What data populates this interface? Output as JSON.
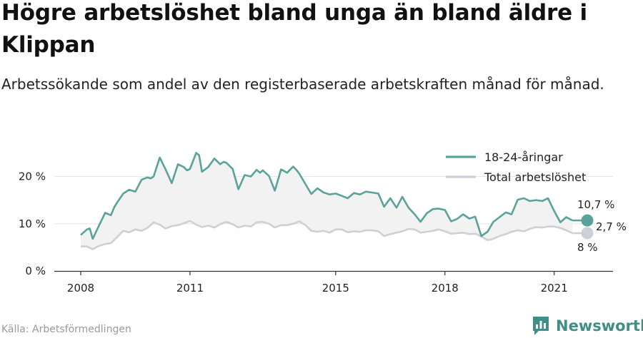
{
  "title": "Högre arbetslöshet bland unga än bland äldre i Klippan",
  "subtitle": "Arbetssökande som andel av den registerbaserade arbetskraften månad för månad.",
  "source": "Källa: Arbetsförmedlingen",
  "brand": "Newsworthy",
  "colors": {
    "youth": "#5aa39a",
    "total": "#cfcfd8",
    "fill": "#f2f2f2",
    "grid": "#e6e6e6",
    "brand": "#3f8f88"
  },
  "icons": {
    "brand_logo": "bar-chart-logo-icon"
  },
  "chart_data": {
    "type": "line",
    "xlim": [
      2008,
      2022.2
    ],
    "ylim": [
      0,
      22
    ],
    "x_ticks": [
      2008,
      2011,
      2015,
      2018,
      2021
    ],
    "x_tick_labels": [
      "2008",
      "2011",
      "2015",
      "2018",
      "2021"
    ],
    "y_ticks": [
      0,
      10,
      20
    ],
    "y_tick_labels": [
      "0 %",
      "10 %",
      "20 %"
    ],
    "legend_position": "top-right",
    "series": [
      {
        "name": "18-24-åringar",
        "x": [
          2008.0,
          2008.17,
          2008.25,
          2008.33,
          2008.5,
          2008.67,
          2008.83,
          2008.92,
          2009.0,
          2009.17,
          2009.33,
          2009.5,
          2009.67,
          2009.83,
          2009.92,
          2010.0,
          2010.17,
          2010.33,
          2010.5,
          2010.67,
          2010.83,
          2010.92,
          2011.0,
          2011.17,
          2011.25,
          2011.33,
          2011.5,
          2011.67,
          2011.83,
          2011.92,
          2012.0,
          2012.17,
          2012.33,
          2012.5,
          2012.67,
          2012.83,
          2012.92,
          2013.0,
          2013.17,
          2013.33,
          2013.5,
          2013.67,
          2013.83,
          2013.92,
          2014.0,
          2014.17,
          2014.33,
          2014.5,
          2014.67,
          2014.83,
          2015.0,
          2015.17,
          2015.33,
          2015.5,
          2015.67,
          2015.83,
          2016.0,
          2016.17,
          2016.33,
          2016.5,
          2016.67,
          2016.83,
          2017.0,
          2017.17,
          2017.33,
          2017.5,
          2017.67,
          2017.83,
          2018.0,
          2018.17,
          2018.33,
          2018.5,
          2018.67,
          2018.83,
          2019.0,
          2019.17,
          2019.33,
          2019.5,
          2019.67,
          2019.83,
          2020.0,
          2020.17,
          2020.33,
          2020.5,
          2020.67,
          2020.83,
          2021.0,
          2021.17,
          2021.33,
          2021.5
        ],
        "values": [
          7.6,
          8.8,
          9.0,
          6.8,
          9.6,
          12.3,
          11.8,
          13.5,
          14.5,
          16.4,
          17.2,
          16.8,
          19.3,
          19.8,
          19.6,
          20.0,
          24.0,
          21.5,
          18.6,
          22.6,
          22.0,
          21.3,
          21.6,
          25.0,
          24.5,
          21.0,
          22.0,
          23.8,
          22.6,
          23.1,
          22.9,
          21.6,
          17.3,
          20.3,
          20.0,
          21.4,
          20.8,
          21.3,
          20.1,
          17.0,
          21.5,
          20.8,
          22.1,
          21.4,
          20.6,
          18.4,
          16.3,
          17.5,
          16.6,
          16.2,
          16.4,
          15.9,
          15.4,
          16.5,
          16.2,
          16.8,
          16.6,
          16.4,
          13.6,
          15.4,
          13.4,
          15.7,
          13.4,
          12.0,
          10.4,
          12.2,
          13.1,
          13.2,
          12.9,
          10.5,
          11.0,
          12.0,
          11.1,
          11.5,
          7.4,
          8.3,
          10.4,
          11.4,
          12.4,
          12.0,
          15.1,
          15.4,
          14.8,
          15.0,
          14.8,
          15.4,
          12.7,
          10.3,
          11.4,
          10.7
        ]
      },
      {
        "name": "Total arbetslöshet",
        "x": [
          2008.0,
          2008.17,
          2008.33,
          2008.5,
          2008.67,
          2008.83,
          2009.0,
          2009.17,
          2009.33,
          2009.5,
          2009.67,
          2009.83,
          2010.0,
          2010.17,
          2010.33,
          2010.5,
          2010.67,
          2010.83,
          2011.0,
          2011.17,
          2011.33,
          2011.5,
          2011.67,
          2011.83,
          2012.0,
          2012.17,
          2012.33,
          2012.5,
          2012.67,
          2012.83,
          2013.0,
          2013.17,
          2013.33,
          2013.5,
          2013.67,
          2013.83,
          2014.0,
          2014.17,
          2014.33,
          2014.5,
          2014.67,
          2014.83,
          2015.0,
          2015.17,
          2015.33,
          2015.5,
          2015.67,
          2015.83,
          2016.0,
          2016.17,
          2016.33,
          2016.5,
          2016.67,
          2016.83,
          2017.0,
          2017.17,
          2017.33,
          2017.5,
          2017.67,
          2017.83,
          2018.0,
          2018.17,
          2018.33,
          2018.5,
          2018.67,
          2018.83,
          2019.0,
          2019.17,
          2019.33,
          2019.5,
          2019.67,
          2019.83,
          2020.0,
          2020.17,
          2020.33,
          2020.5,
          2020.67,
          2020.83,
          2021.0,
          2021.17,
          2021.33,
          2021.5
        ],
        "values": [
          5.2,
          5.2,
          4.6,
          5.3,
          5.7,
          5.9,
          7.2,
          8.5,
          8.2,
          8.8,
          8.5,
          9.1,
          10.3,
          9.8,
          9.0,
          9.5,
          9.7,
          10.1,
          10.6,
          9.8,
          9.3,
          9.6,
          9.2,
          9.9,
          10.4,
          9.9,
          9.2,
          9.6,
          9.4,
          10.3,
          10.4,
          10.0,
          9.2,
          9.7,
          9.7,
          10.0,
          10.5,
          9.7,
          8.5,
          8.3,
          8.5,
          8.1,
          8.8,
          8.8,
          8.2,
          8.4,
          8.3,
          8.6,
          8.6,
          8.4,
          7.4,
          7.8,
          8.1,
          8.4,
          8.9,
          8.8,
          8.1,
          8.3,
          8.5,
          8.8,
          8.4,
          7.9,
          8.0,
          8.1,
          7.8,
          7.9,
          7.3,
          6.5,
          6.8,
          7.4,
          7.8,
          8.3,
          8.6,
          8.4,
          8.9,
          9.3,
          9.2,
          9.4,
          9.4,
          9.1,
          8.6,
          8.0
        ]
      }
    ],
    "labels": {
      "youth_last": "10,7 %",
      "gap": "2,7 %",
      "total_last": "8 %"
    }
  }
}
